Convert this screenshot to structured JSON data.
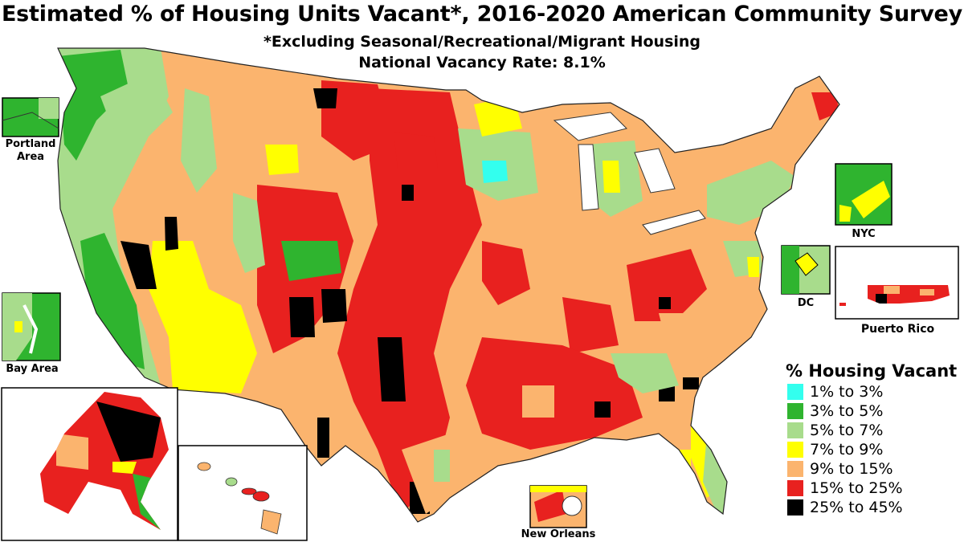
{
  "header": {
    "title": "Estimated % of Housing Units Vacant*, 2016-2020 American Community Survey",
    "subtitle": "*Excluding Seasonal/Recreational/Migrant Housing",
    "national_rate": "National Vacancy Rate: 8.1%"
  },
  "insets": {
    "portland": "Portland Area",
    "bay": "Bay Area",
    "nyc": "NYC",
    "dc": "DC",
    "puerto_rico": "Puerto Rico",
    "new_orleans": "New Orleans"
  },
  "legend": {
    "title": "% Housing Vacant",
    "items": [
      {
        "label": "1% to 3%",
        "color": "#33ffee"
      },
      {
        "label": "3% to 5%",
        "color": "#2fb42f"
      },
      {
        "label": "5% to 7%",
        "color": "#a8dc8c"
      },
      {
        "label": "7% to 9%",
        "color": "#ffff00"
      },
      {
        "label": "9% to 15%",
        "color": "#fbb46e"
      },
      {
        "label": "15% to 25%",
        "color": "#e8211f"
      },
      {
        "label": "25% to 45%",
        "color": "#000000"
      }
    ]
  }
}
